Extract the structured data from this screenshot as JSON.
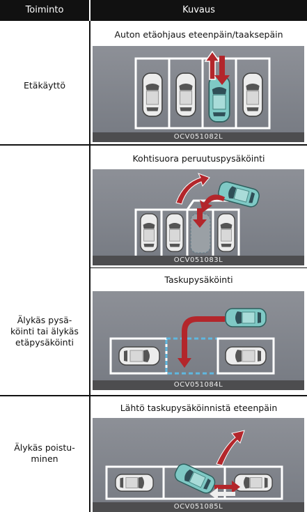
{
  "table": {
    "header": [
      "Toiminto",
      "Kuvaus"
    ],
    "rows": [
      {
        "function": [
          "Etäkäyttö"
        ],
        "items": [
          {
            "title": "Auton etäohjaus eteenpäin/taaksepäin",
            "code": "OCV051082L"
          }
        ]
      },
      {
        "function": [
          "Älykäs pysä-",
          "köinti tai älykäs",
          "etäpysäköinti"
        ],
        "items": [
          {
            "title": "Kohtisuora peruutuspysäköinti",
            "code": "OCV051083L"
          },
          {
            "title": "Taskupysäköinti",
            "code": "OCV051084L"
          }
        ]
      },
      {
        "function": [
          "Älykäs poistu-",
          "minen"
        ],
        "items": [
          {
            "title": "Lähtö taskupysäköinnistä eteenpäin",
            "code": "OCV051085L"
          }
        ]
      }
    ]
  }
}
